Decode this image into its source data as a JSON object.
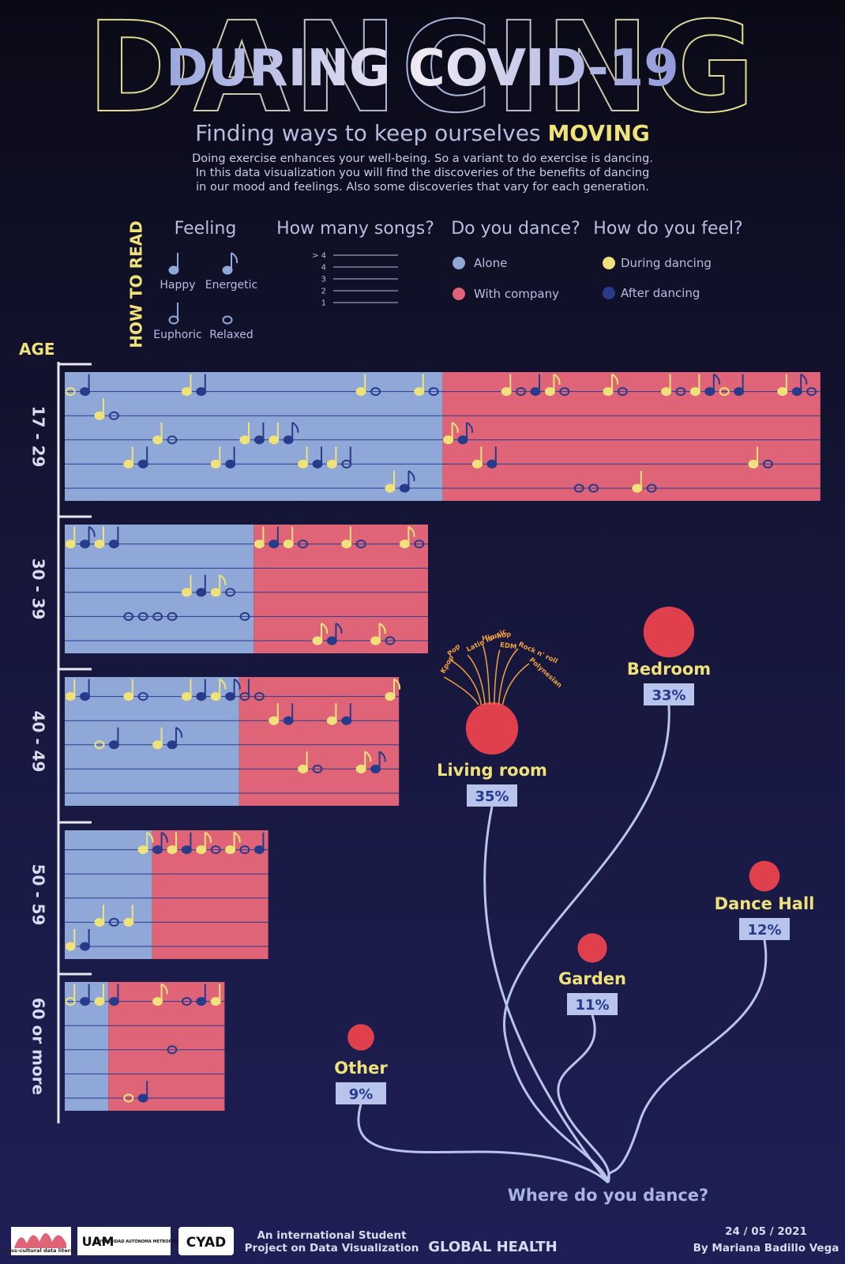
{
  "header": {
    "title_big": "DANCING",
    "title": "DURING COVID-19",
    "subtitle": "Finding ways to keep ourselves",
    "subtitle_highlight": "MOVING",
    "description": "Doing exercise enhances your well-being. So a variant to do exercise is dancing. In this data visualization you will find the discoveries of the benefits of dancing in our mood and feelings. Also some discoveries that vary for each generation."
  },
  "legend": {
    "title": "HOW TO READ",
    "feeling": {
      "title": "Feeling",
      "items": [
        "Happy",
        "Energetic",
        "Euphoric",
        "Relaxed"
      ]
    },
    "songs": {
      "title": "How many songs?",
      "items": [
        "> 4",
        "4",
        "3",
        "2",
        "1"
      ]
    },
    "dance": {
      "title": "Do you dance?",
      "items": [
        "Alone",
        "With company"
      ],
      "colors": [
        "#8fa8d8",
        "#e06478"
      ]
    },
    "feel": {
      "title": "How do you feel?",
      "items": [
        "During dancing",
        "After dancing"
      ],
      "colors": [
        "#f0e27a",
        "#283a8a"
      ]
    }
  },
  "age": {
    "title": "AGE",
    "groups": [
      {
        "label": "17 - 29",
        "alone": [
          [
            0,
            3,
            0
          ],
          [
            0,
            0,
            1
          ],
          [
            1,
            0,
            0
          ],
          [
            1,
            3,
            1
          ],
          [
            3,
            0,
            0
          ],
          [
            3,
            0,
            1
          ],
          [
            2,
            0,
            0
          ],
          [
            2,
            3,
            1
          ],
          [
            0,
            0,
            0
          ],
          [
            0,
            0,
            1
          ],
          [
            3,
            0,
            0
          ],
          [
            3,
            0,
            1
          ],
          [
            2,
            0,
            0
          ],
          [
            2,
            0,
            1
          ],
          [
            2,
            0,
            0
          ],
          [
            2,
            1,
            1
          ],
          [
            3,
            0,
            0
          ],
          [
            3,
            0,
            1
          ],
          [
            3,
            0,
            0
          ],
          [
            3,
            2,
            1
          ],
          [
            0,
            0,
            0
          ],
          [
            0,
            3,
            1
          ],
          [
            4,
            0,
            0
          ],
          [
            4,
            1,
            1
          ],
          [
            0,
            0,
            0
          ],
          [
            0,
            3,
            1
          ]
        ],
        "company": [
          [
            2,
            1,
            0
          ],
          [
            2,
            1,
            1
          ],
          [
            3,
            0,
            0
          ],
          [
            3,
            0,
            1
          ],
          [
            0,
            0,
            0
          ],
          [
            0,
            3,
            1
          ],
          [
            0,
            0,
            1
          ],
          [
            0,
            1,
            0
          ],
          [
            0,
            3,
            1
          ],
          [
            4,
            3,
            1
          ],
          [
            4,
            3,
            1
          ],
          [
            0,
            1,
            0
          ],
          [
            0,
            3,
            1
          ],
          [
            4,
            0,
            0
          ],
          [
            4,
            3,
            1
          ],
          [
            0,
            0,
            0
          ],
          [
            0,
            3,
            1
          ],
          [
            0,
            0,
            0
          ],
          [
            0,
            1,
            1
          ],
          [
            0,
            3,
            0
          ],
          [
            0,
            0,
            1
          ],
          [
            3,
            0,
            0
          ],
          [
            3,
            3,
            1
          ],
          [
            0,
            0,
            0
          ],
          [
            0,
            1,
            1
          ],
          [
            0,
            3,
            1
          ]
        ]
      },
      {
        "label": "30 - 39",
        "alone": [
          [
            0,
            0,
            0
          ],
          [
            0,
            1,
            1
          ],
          [
            0,
            0,
            0
          ],
          [
            0,
            0,
            1
          ],
          [
            3,
            3,
            1
          ],
          [
            3,
            3,
            1
          ],
          [
            3,
            3,
            1
          ],
          [
            3,
            3,
            1
          ],
          [
            2,
            0,
            0
          ],
          [
            2,
            0,
            1
          ],
          [
            2,
            1,
            0
          ],
          [
            2,
            3,
            1
          ],
          [
            3,
            3,
            1
          ]
        ],
        "company": [
          [
            0,
            0,
            0
          ],
          [
            0,
            0,
            1
          ],
          [
            0,
            0,
            0
          ],
          [
            0,
            3,
            1
          ],
          [
            4,
            1,
            0
          ],
          [
            4,
            1,
            1
          ],
          [
            0,
            0,
            0
          ],
          [
            0,
            3,
            1
          ],
          [
            4,
            1,
            0
          ],
          [
            4,
            3,
            1
          ],
          [
            0,
            1,
            0
          ],
          [
            0,
            3,
            1
          ]
        ]
      },
      {
        "label": "40 - 49",
        "alone": [
          [
            0,
            0,
            0
          ],
          [
            0,
            0,
            1
          ],
          [
            2,
            3,
            0
          ],
          [
            2,
            0,
            1
          ],
          [
            0,
            0,
            0
          ],
          [
            0,
            3,
            1
          ],
          [
            2,
            0,
            0
          ],
          [
            2,
            1,
            1
          ],
          [
            0,
            0,
            0
          ],
          [
            0,
            0,
            1
          ],
          [
            0,
            1,
            0
          ],
          [
            0,
            1,
            1
          ]
        ],
        "company": [
          [
            0,
            2,
            1
          ],
          [
            0,
            3,
            1
          ],
          [
            1,
            0,
            0
          ],
          [
            1,
            0,
            1
          ],
          [
            3,
            0,
            0
          ],
          [
            3,
            3,
            1
          ],
          [
            1,
            0,
            0
          ],
          [
            1,
            0,
            1
          ],
          [
            3,
            1,
            0
          ],
          [
            3,
            1,
            1
          ],
          [
            0,
            1,
            0
          ]
        ]
      },
      {
        "label": "50 - 59",
        "alone": [
          [
            4,
            0,
            0
          ],
          [
            4,
            0,
            1
          ],
          [
            3,
            0,
            0
          ],
          [
            3,
            3,
            1
          ],
          [
            3,
            0,
            0
          ],
          [
            0,
            1,
            0
          ]
        ],
        "company": [
          [
            0,
            1,
            1
          ],
          [
            0,
            0,
            0
          ],
          [
            0,
            0,
            1
          ],
          [
            0,
            1,
            0
          ],
          [
            0,
            3,
            1
          ],
          [
            0,
            1,
            0
          ],
          [
            0,
            3,
            1
          ],
          [
            0,
            0,
            1
          ]
        ]
      },
      {
        "label": "60 or more",
        "alone": [
          [
            0,
            2,
            0
          ],
          [
            0,
            0,
            1
          ],
          [
            0,
            0,
            0
          ]
        ],
        "company": [
          [
            0,
            0,
            1
          ],
          [
            4,
            3,
            0
          ],
          [
            4,
            0,
            1
          ],
          [
            0,
            1,
            0
          ],
          [
            2,
            3,
            1
          ],
          [
            0,
            3,
            1
          ],
          [
            0,
            0,
            1
          ],
          [
            0,
            0,
            0
          ]
        ]
      }
    ]
  },
  "places": {
    "title": "Where do you dance?",
    "genres": [
      "Kpop",
      "Pop",
      "Latin music",
      "Hip hop",
      "EDM",
      "Rock n' roll",
      "Polynesian"
    ],
    "items": [
      {
        "name": "Living room",
        "value": 35,
        "value_label": "35%"
      },
      {
        "name": "Bedroom",
        "value": 33,
        "value_label": "33%"
      },
      {
        "name": "Dance Hall",
        "value": 12,
        "value_label": "12%"
      },
      {
        "name": "Garden",
        "value": 11,
        "value_label": "11%"
      },
      {
        "name": "Other",
        "value": 9,
        "value_label": "9%"
      }
    ]
  },
  "footer": {
    "logos": [
      "cross-cultural data literacy",
      "UAM",
      "UNIVERSIDAD AUTÓNOMA METROPOLITANA",
      "CYAD"
    ],
    "project": [
      "An international Student",
      "Project on Data Visualization"
    ],
    "topic": "GLOBAL HEALTH",
    "date": "24 / 05 / 2021",
    "author": "By Mariana Badillo Vega"
  }
}
